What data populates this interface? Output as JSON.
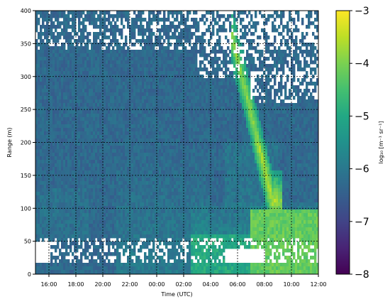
{
  "chart_data": {
    "type": "heatmap",
    "title": "",
    "xlabel": "Time (UTC)",
    "ylabel": "Range (m)",
    "x_ticks": [
      "16:00",
      "18:00",
      "20:00",
      "22:00",
      "00:00",
      "02:00",
      "04:00",
      "06:00",
      "08:00",
      "10:00",
      "12:00"
    ],
    "x_range_hours": [
      15.0,
      36.0
    ],
    "y_ticks": [
      0,
      50,
      100,
      150,
      200,
      250,
      300,
      350,
      400
    ],
    "ylim": [
      0,
      400
    ],
    "grid": true,
    "colorbar": {
      "label": "log₁₀ [m⁻¹ sr⁻¹]",
      "ticks": [
        "−8",
        "−7",
        "−6",
        "−5",
        "−4",
        "−3"
      ],
      "min": -8,
      "max": -3,
      "colormap": "viridis"
    },
    "description_values": {
      "background_level": -6.3,
      "surface_layer_level": -5.0,
      "descending_layer_peak": -3.8,
      "descending_layer_start_hour": 29.6,
      "descending_layer_start_range": 360,
      "descending_layer_end_hour": 32.6,
      "descending_layer_end_range": 110
    }
  }
}
